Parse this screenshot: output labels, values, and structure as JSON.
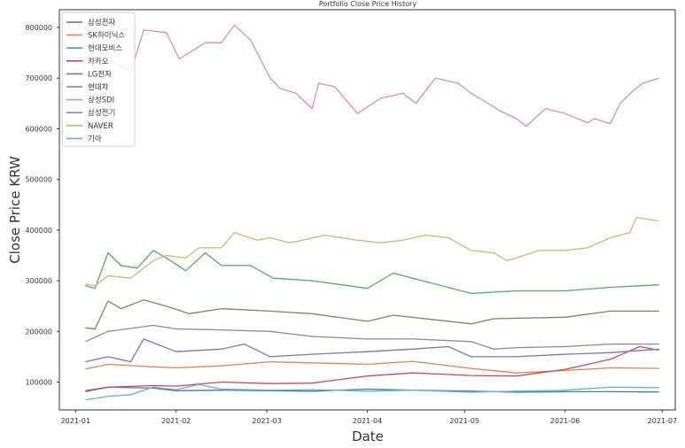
{
  "chart_data": {
    "type": "line",
    "title": "Portfolio Close Price History",
    "xlabel": "Date",
    "ylabel": "Close Price KRW",
    "xlim": [
      "2020-12-27",
      "2021-07-05"
    ],
    "ylim": [
      45000,
      835000
    ],
    "x_ticks": [
      "2021-01",
      "2021-02",
      "2021-03",
      "2021-04",
      "2021-05",
      "2021-06",
      "2021-07"
    ],
    "y_ticks": [
      100000,
      200000,
      300000,
      400000,
      500000,
      600000,
      700000,
      800000
    ],
    "grid": false,
    "legend_position": "upper-left",
    "series": [
      {
        "name": "삼성전자",
        "color": "#4c72b0",
        "points": [
          [
            "2021-01-04",
            83000
          ],
          [
            "2021-01-11",
            90000
          ],
          [
            "2021-01-25",
            88000
          ],
          [
            "2021-02-01",
            83000
          ],
          [
            "2021-02-15",
            84000
          ],
          [
            "2021-03-02",
            83000
          ],
          [
            "2021-03-15",
            82000
          ],
          [
            "2021-04-01",
            86000
          ],
          [
            "2021-04-15",
            84000
          ],
          [
            "2021-05-03",
            82000
          ],
          [
            "2021-05-17",
            80000
          ],
          [
            "2021-06-01",
            81000
          ],
          [
            "2021-06-15",
            81000
          ],
          [
            "2021-06-30",
            80500
          ]
        ]
      },
      {
        "name": "SK하이닉스",
        "color": "#dd8452",
        "points": [
          [
            "2021-01-04",
            126000
          ],
          [
            "2021-01-11",
            135000
          ],
          [
            "2021-01-25",
            130000
          ],
          [
            "2021-02-01",
            128000
          ],
          [
            "2021-02-15",
            132000
          ],
          [
            "2021-03-02",
            140000
          ],
          [
            "2021-03-15",
            138000
          ],
          [
            "2021-04-01",
            135000
          ],
          [
            "2021-04-15",
            141000
          ],
          [
            "2021-05-03",
            127000
          ],
          [
            "2021-05-17",
            118000
          ],
          [
            "2021-06-01",
            123000
          ],
          [
            "2021-06-15",
            128000
          ],
          [
            "2021-06-30",
            127000
          ]
        ]
      },
      {
        "name": "현대모비스",
        "color": "#55a868",
        "points": [
          [
            "2021-01-04",
            290000
          ],
          [
            "2021-01-07",
            285000
          ],
          [
            "2021-01-11",
            355000
          ],
          [
            "2021-01-15",
            330000
          ],
          [
            "2021-01-20",
            325000
          ],
          [
            "2021-01-25",
            360000
          ],
          [
            "2021-01-29",
            345000
          ],
          [
            "2021-02-04",
            320000
          ],
          [
            "2021-02-10",
            355000
          ],
          [
            "2021-02-15",
            330000
          ],
          [
            "2021-02-24",
            330000
          ],
          [
            "2021-03-03",
            305000
          ],
          [
            "2021-03-15",
            300000
          ],
          [
            "2021-04-01",
            285000
          ],
          [
            "2021-04-09",
            315000
          ],
          [
            "2021-04-15",
            305000
          ],
          [
            "2021-05-03",
            275000
          ],
          [
            "2021-05-17",
            280000
          ],
          [
            "2021-06-01",
            280000
          ],
          [
            "2021-06-15",
            287000
          ],
          [
            "2021-06-30",
            292000
          ]
        ]
      },
      {
        "name": "카카오",
        "color": "#c44e52",
        "points": [
          [
            "2021-01-04",
            81000
          ],
          [
            "2021-01-11",
            90000
          ],
          [
            "2021-01-25",
            93000
          ],
          [
            "2021-02-01",
            92000
          ],
          [
            "2021-02-15",
            100000
          ],
          [
            "2021-03-02",
            97000
          ],
          [
            "2021-03-15",
            98000
          ],
          [
            "2021-04-01",
            112000
          ],
          [
            "2021-04-15",
            118000
          ],
          [
            "2021-05-03",
            113000
          ],
          [
            "2021-05-17",
            112000
          ],
          [
            "2021-06-01",
            125000
          ],
          [
            "2021-06-15",
            145000
          ],
          [
            "2021-06-24",
            170000
          ],
          [
            "2021-06-30",
            163000
          ]
        ]
      },
      {
        "name": "LG전자",
        "color": "#8172b3",
        "points": [
          [
            "2021-01-04",
            140000
          ],
          [
            "2021-01-11",
            150000
          ],
          [
            "2021-01-18",
            140000
          ],
          [
            "2021-01-22",
            185000
          ],
          [
            "2021-02-01",
            160000
          ],
          [
            "2021-02-15",
            165000
          ],
          [
            "2021-02-22",
            175000
          ],
          [
            "2021-03-02",
            150000
          ],
          [
            "2021-03-15",
            155000
          ],
          [
            "2021-04-01",
            160000
          ],
          [
            "2021-04-15",
            165000
          ],
          [
            "2021-04-26",
            170000
          ],
          [
            "2021-05-03",
            150000
          ],
          [
            "2021-05-17",
            150000
          ],
          [
            "2021-06-01",
            155000
          ],
          [
            "2021-06-15",
            158000
          ],
          [
            "2021-06-30",
            165000
          ]
        ]
      },
      {
        "name": "현대차",
        "color": "#937860",
        "points": [
          [
            "2021-01-04",
            207000
          ],
          [
            "2021-01-07",
            205000
          ],
          [
            "2021-01-11",
            260000
          ],
          [
            "2021-01-15",
            245000
          ],
          [
            "2021-01-22",
            262000
          ],
          [
            "2021-01-29",
            250000
          ],
          [
            "2021-02-05",
            235000
          ],
          [
            "2021-02-15",
            245000
          ],
          [
            "2021-03-02",
            240000
          ],
          [
            "2021-03-15",
            235000
          ],
          [
            "2021-04-01",
            220000
          ],
          [
            "2021-04-09",
            232000
          ],
          [
            "2021-05-03",
            215000
          ],
          [
            "2021-05-10",
            225000
          ],
          [
            "2021-06-01",
            228000
          ],
          [
            "2021-06-15",
            240000
          ],
          [
            "2021-06-30",
            240000
          ]
        ]
      },
      {
        "name": "삼성SDI",
        "color": "#da8bc3",
        "points": [
          [
            "2021-01-04",
            740000
          ],
          [
            "2021-01-07",
            718000
          ],
          [
            "2021-01-12",
            735000
          ],
          [
            "2021-01-18",
            712000
          ],
          [
            "2021-01-22",
            795000
          ],
          [
            "2021-01-29",
            790000
          ],
          [
            "2021-02-02",
            738000
          ],
          [
            "2021-02-10",
            770000
          ],
          [
            "2021-02-15",
            770000
          ],
          [
            "2021-02-19",
            805000
          ],
          [
            "2021-02-24",
            775000
          ],
          [
            "2021-03-02",
            700000
          ],
          [
            "2021-03-05",
            680000
          ],
          [
            "2021-03-10",
            670000
          ],
          [
            "2021-03-15",
            640000
          ],
          [
            "2021-03-17",
            690000
          ],
          [
            "2021-03-22",
            683000
          ],
          [
            "2021-03-29",
            630000
          ],
          [
            "2021-04-05",
            660000
          ],
          [
            "2021-04-12",
            670000
          ],
          [
            "2021-04-16",
            650000
          ],
          [
            "2021-04-22",
            700000
          ],
          [
            "2021-04-29",
            690000
          ],
          [
            "2021-05-03",
            670000
          ],
          [
            "2021-05-07",
            655000
          ],
          [
            "2021-05-12",
            635000
          ],
          [
            "2021-05-17",
            620000
          ],
          [
            "2021-05-20",
            605000
          ],
          [
            "2021-05-26",
            640000
          ],
          [
            "2021-06-01",
            630000
          ],
          [
            "2021-06-08",
            612000
          ],
          [
            "2021-06-10",
            620000
          ],
          [
            "2021-06-15",
            610000
          ],
          [
            "2021-06-18",
            650000
          ],
          [
            "2021-06-22",
            675000
          ],
          [
            "2021-06-25",
            690000
          ],
          [
            "2021-06-30",
            700000
          ]
        ]
      },
      {
        "name": "삼성전기",
        "color": "#8c8c8c",
        "points": [
          [
            "2021-01-04",
            180000
          ],
          [
            "2021-01-11",
            200000
          ],
          [
            "2021-01-25",
            212000
          ],
          [
            "2021-02-01",
            205000
          ],
          [
            "2021-02-15",
            203000
          ],
          [
            "2021-03-02",
            200000
          ],
          [
            "2021-03-15",
            190000
          ],
          [
            "2021-04-01",
            185000
          ],
          [
            "2021-04-15",
            185000
          ],
          [
            "2021-05-03",
            180000
          ],
          [
            "2021-05-10",
            165000
          ],
          [
            "2021-05-17",
            168000
          ],
          [
            "2021-06-01",
            170000
          ],
          [
            "2021-06-15",
            175000
          ],
          [
            "2021-06-30",
            175000
          ]
        ]
      },
      {
        "name": "NAVER",
        "color": "#ccb974",
        "points": [
          [
            "2021-01-04",
            293000
          ],
          [
            "2021-01-07",
            290000
          ],
          [
            "2021-01-11",
            310000
          ],
          [
            "2021-01-18",
            305000
          ],
          [
            "2021-01-25",
            340000
          ],
          [
            "2021-01-29",
            350000
          ],
          [
            "2021-02-04",
            345000
          ],
          [
            "2021-02-08",
            365000
          ],
          [
            "2021-02-15",
            365000
          ],
          [
            "2021-02-19",
            395000
          ],
          [
            "2021-02-26",
            380000
          ],
          [
            "2021-03-02",
            385000
          ],
          [
            "2021-03-08",
            375000
          ],
          [
            "2021-03-12",
            380000
          ],
          [
            "2021-03-19",
            390000
          ],
          [
            "2021-03-29",
            380000
          ],
          [
            "2021-04-05",
            375000
          ],
          [
            "2021-04-12",
            380000
          ],
          [
            "2021-04-19",
            390000
          ],
          [
            "2021-04-26",
            385000
          ],
          [
            "2021-05-03",
            360000
          ],
          [
            "2021-05-10",
            355000
          ],
          [
            "2021-05-14",
            340000
          ],
          [
            "2021-05-17",
            345000
          ],
          [
            "2021-05-24",
            360000
          ],
          [
            "2021-06-01",
            360000
          ],
          [
            "2021-06-08",
            365000
          ],
          [
            "2021-06-15",
            385000
          ],
          [
            "2021-06-21",
            395000
          ],
          [
            "2021-06-23",
            425000
          ],
          [
            "2021-06-30",
            418000
          ]
        ]
      },
      {
        "name": "기아",
        "color": "#64b5cd",
        "points": [
          [
            "2021-01-04",
            65000
          ],
          [
            "2021-01-11",
            72000
          ],
          [
            "2021-01-18",
            75000
          ],
          [
            "2021-01-25",
            90000
          ],
          [
            "2021-02-01",
            85000
          ],
          [
            "2021-02-08",
            95000
          ],
          [
            "2021-02-15",
            86000
          ],
          [
            "2021-03-02",
            84000
          ],
          [
            "2021-03-15",
            85000
          ],
          [
            "2021-04-01",
            82000
          ],
          [
            "2021-04-15",
            84000
          ],
          [
            "2021-05-03",
            80000
          ],
          [
            "2021-05-17",
            82000
          ],
          [
            "2021-06-01",
            84000
          ],
          [
            "2021-06-15",
            90000
          ],
          [
            "2021-06-30",
            89000
          ]
        ]
      }
    ]
  }
}
